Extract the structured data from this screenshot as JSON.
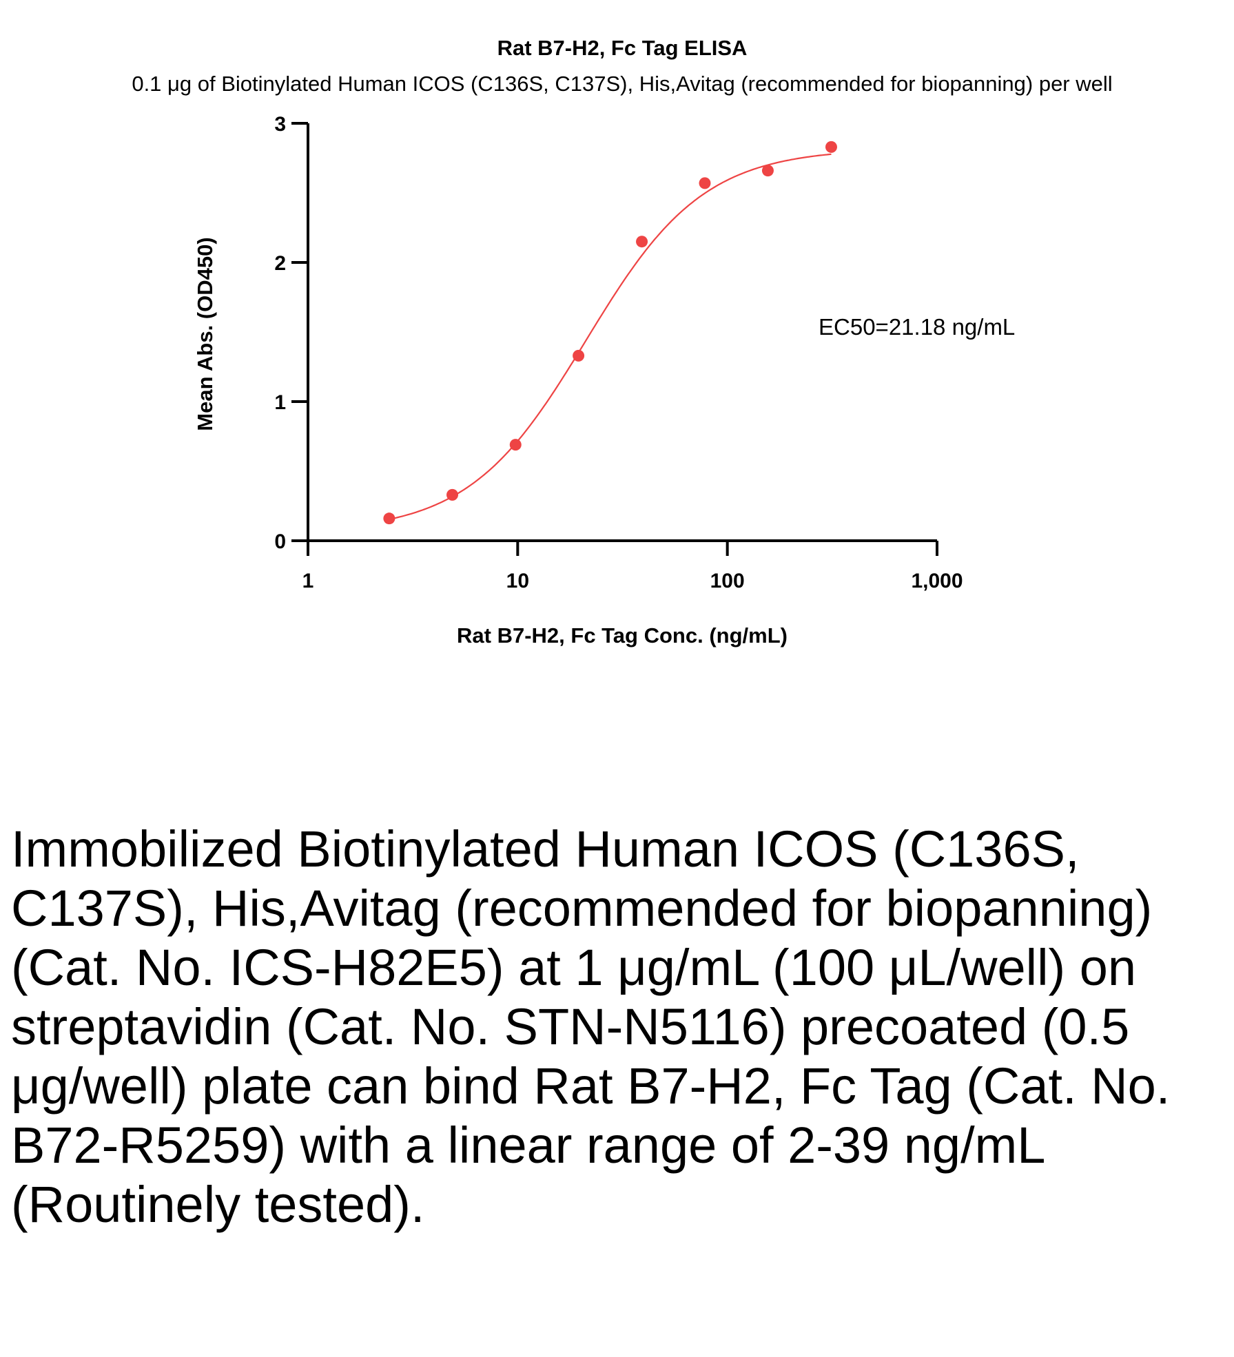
{
  "chart_data": {
    "type": "scatter",
    "title": "Rat B7-H2, Fc Tag ELISA",
    "subtitle": "0.1 μg of Biotinylated Human ICOS (C136S, C137S), His,Avitag (recommended for biopanning) per well",
    "xlabel": "Rat B7-H2, Fc Tag Conc. (ng/mL)",
    "ylabel": "Mean Abs. (OD450)",
    "xscale": "log",
    "xlim": [
      1,
      1000
    ],
    "ylim": [
      0,
      3
    ],
    "xticks": [
      1,
      10,
      100,
      1000
    ],
    "xtick_labels": [
      "1",
      "10",
      "100",
      "1,000"
    ],
    "yticks": [
      0,
      1,
      2,
      3
    ],
    "ytick_labels": [
      "0",
      "1",
      "2",
      "3"
    ],
    "grid": false,
    "color": "#ee4444",
    "series": [
      {
        "x": [
          2.44,
          4.88,
          9.77,
          19.5,
          39.1,
          78.1,
          156,
          313
        ],
        "y": [
          0.16,
          0.33,
          0.69,
          1.33,
          2.15,
          2.57,
          2.66,
          2.83
        ]
      }
    ],
    "fit": {
      "model": "4PL",
      "bottom": 0.06,
      "top": 2.82,
      "ec50": 21.18,
      "hill": 1.55
    },
    "annotation": "EC50=21.18 ng/mL"
  },
  "caption": "Immobilized Biotinylated Human ICOS (C136S, C137S), His,Avitag (recommended for biopanning) (Cat. No. ICS-H82E5) at 1 μg/mL (100 μL/well) on streptavidin (Cat. No. STN-N5116) precoated (0.5 μg/well) plate can bind Rat B7-H2, Fc Tag (Cat. No. B72-R5259) with a linear range of 2-39 ng/mL (Routinely tested)."
}
